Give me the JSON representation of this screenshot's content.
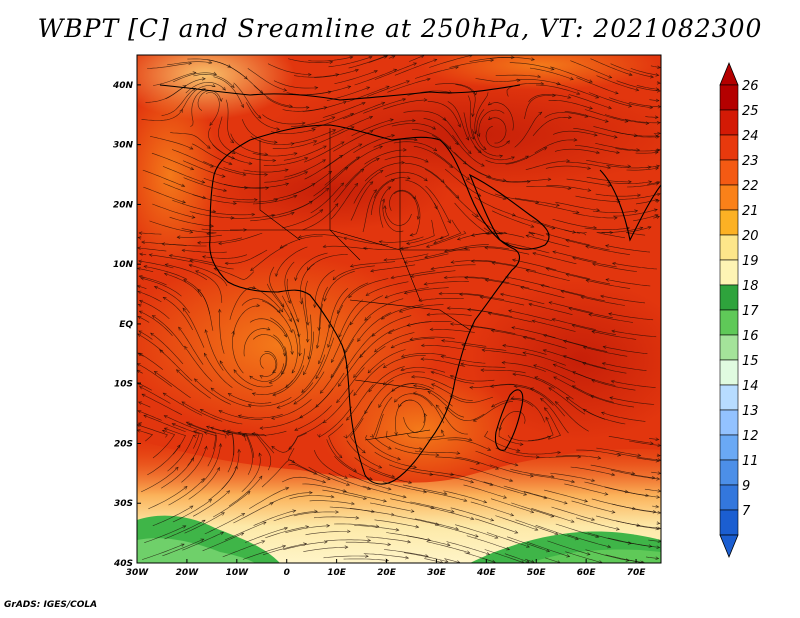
{
  "title": "WBPT [C] and Sreamline at 250hPa, VT: 2021082300",
  "credit": "GrADS: IGES/COLA",
  "map": {
    "lon_range": [
      -30,
      75
    ],
    "lat_range": [
      -40,
      45
    ],
    "x_ticks": [
      "30W",
      "20W",
      "10W",
      "0",
      "10E",
      "20E",
      "30E",
      "40E",
      "50E",
      "60E",
      "70E"
    ],
    "y_ticks": [
      "40N",
      "30N",
      "20N",
      "10N",
      "EQ",
      "10S",
      "20S",
      "30S",
      "40S"
    ]
  },
  "colorbar": {
    "labels": [
      "26",
      "25",
      "24",
      "23",
      "22",
      "21",
      "20",
      "19",
      "18",
      "17",
      "16",
      "15",
      "14",
      "13",
      "12",
      "11",
      "9",
      "7"
    ],
    "colors": [
      "#b40000",
      "#d41a05",
      "#e8390d",
      "#f45a13",
      "#fa8119",
      "#fcb124",
      "#fde68a",
      "#fef4b4",
      "#2ea33c",
      "#5fc958",
      "#a4e39a",
      "#e0fbe0",
      "#b7dcff",
      "#93c2ff",
      "#6aa9f5",
      "#4c8fe8",
      "#3377dd",
      "#1b5ed1"
    ]
  }
}
